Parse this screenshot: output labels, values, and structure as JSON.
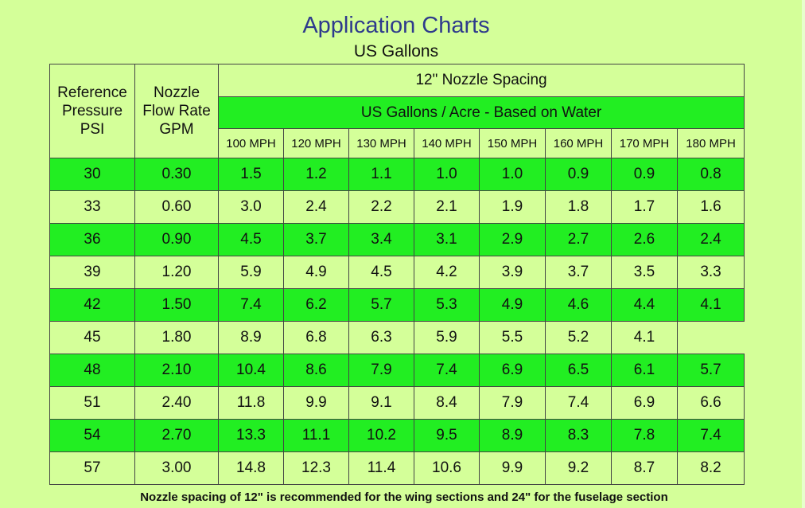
{
  "title": "Application Charts",
  "subtitle": "US Gallons",
  "table": {
    "col1_header": [
      "Reference",
      "Pressure",
      "PSI"
    ],
    "col2_header": [
      "Nozzle",
      "Flow Rate",
      "GPM"
    ],
    "spacing_header": "12\" Nozzle Spacing",
    "gallons_header": "US Gallons / Acre - Based on Water",
    "speeds": [
      "100 MPH",
      "120 MPH",
      "130 MPH",
      "140 MPH",
      "150 MPH",
      "160 MPH",
      "170 MPH",
      "180 MPH"
    ],
    "rows": [
      {
        "psi": "30",
        "gpm": "0.30",
        "values": [
          "1.5",
          "1.2",
          "1.1",
          "1.0",
          "1.0",
          "0.9",
          "0.9",
          "0.8"
        ]
      },
      {
        "psi": "33",
        "gpm": "0.60",
        "values": [
          "3.0",
          "2.4",
          "2.2",
          "2.1",
          "1.9",
          "1.8",
          "1.7",
          "1.6"
        ]
      },
      {
        "psi": "36",
        "gpm": "0.90",
        "values": [
          "4.5",
          "3.7",
          "3.4",
          "3.1",
          "2.9",
          "2.7",
          "2.6",
          "2.4"
        ]
      },
      {
        "psi": "39",
        "gpm": "1.20",
        "values": [
          "5.9",
          "4.9",
          "4.5",
          "4.2",
          "3.9",
          "3.7",
          "3.5",
          "3.3"
        ]
      },
      {
        "psi": "42",
        "gpm": "1.50",
        "values": [
          "7.4",
          "6.2",
          "5.7",
          "5.3",
          "4.9",
          "4.6",
          "4.4",
          "4.1"
        ]
      },
      {
        "psi": "45",
        "gpm": "1.80",
        "values": [
          "8.9",
          "6.8",
          "6.3",
          "5.9",
          "5.5",
          "5.2",
          "4.1",
          ""
        ]
      },
      {
        "psi": "48",
        "gpm": "2.10",
        "values": [
          "10.4",
          "8.6",
          "7.9",
          "7.4",
          "6.9",
          "6.5",
          "6.1",
          "5.7"
        ]
      },
      {
        "psi": "51",
        "gpm": "2.40",
        "values": [
          "11.8",
          "9.9",
          "9.1",
          "8.4",
          "7.9",
          "7.4",
          "6.9",
          "6.6"
        ]
      },
      {
        "psi": "54",
        "gpm": "2.70",
        "values": [
          "13.3",
          "11.1",
          "10.2",
          "9.5",
          "8.9",
          "8.3",
          "7.8",
          "7.4"
        ]
      },
      {
        "psi": "57",
        "gpm": "3.00",
        "values": [
          "14.8",
          "12.3",
          "11.4",
          "10.6",
          "9.9",
          "9.2",
          "8.7",
          "8.2"
        ]
      }
    ]
  },
  "footnote": "Nozzle spacing of 12\" is recommended for the wing sections and 24\" for the fuselage section",
  "colors": {
    "background": "#d4ff99",
    "highlight": "#22ee22",
    "title": "#2e3a8c"
  }
}
